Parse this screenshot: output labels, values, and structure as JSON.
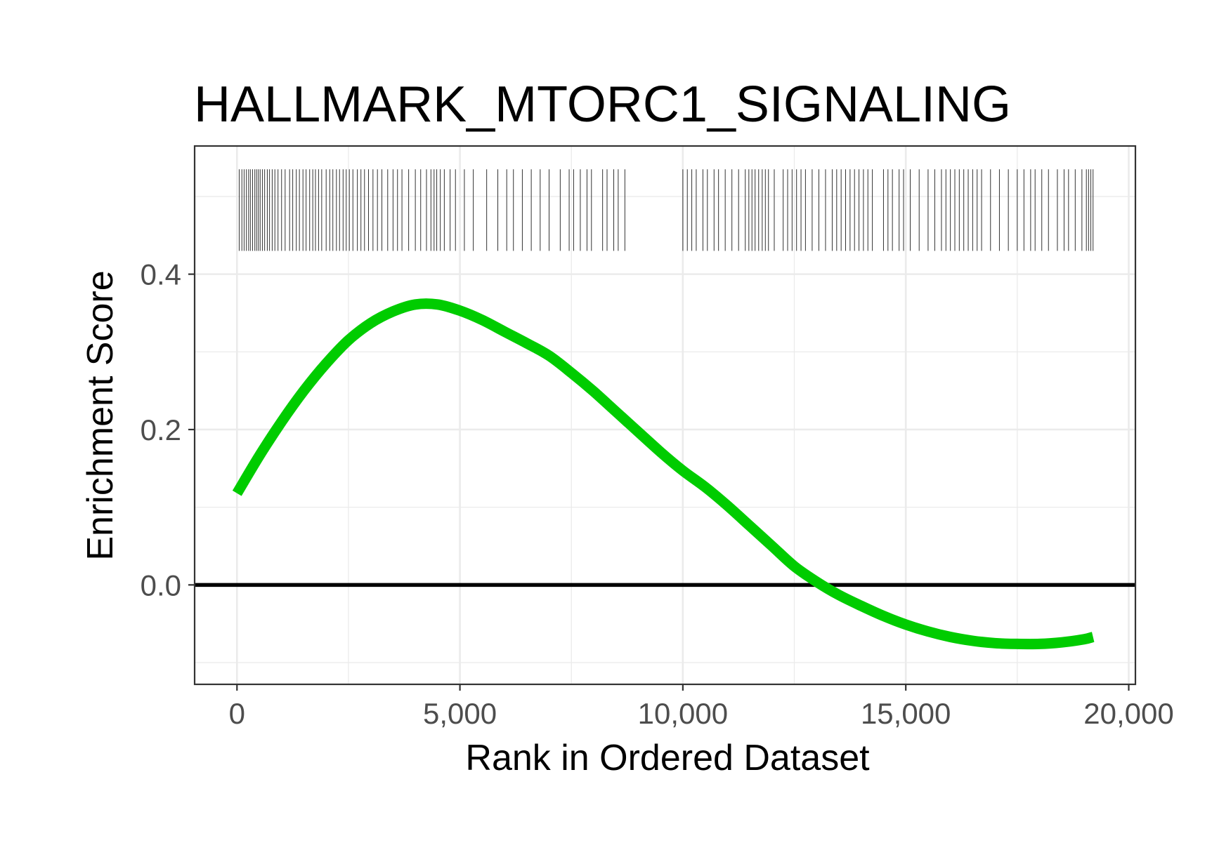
{
  "chart_data": {
    "type": "line",
    "title": "HALLMARK_MTORC1_SIGNALING",
    "xlabel": "Rank in Ordered Dataset",
    "ylabel": "Enrichment Score",
    "xlim": [
      -950,
      20150
    ],
    "ylim": [
      -0.128,
      0.565
    ],
    "x_ticks": [
      0,
      5000,
      10000,
      15000,
      20000
    ],
    "x_tick_labels": [
      "0",
      "5,000",
      "10,000",
      "15,000",
      "20,000"
    ],
    "y_ticks": [
      0.0,
      0.2,
      0.4
    ],
    "y_tick_labels": [
      "0.0",
      "0.2",
      "0.4"
    ],
    "x_minor_ticks": [
      2500,
      7500,
      12500,
      17500
    ],
    "y_minor_ticks": [
      -0.1,
      0.1,
      0.3,
      0.5
    ],
    "grid": true,
    "zero_line": 0,
    "series": [
      {
        "color": "#00cc00",
        "x": [
          0,
          500,
          1000,
          1500,
          2000,
          2500,
          3000,
          3500,
          4000,
          4500,
          5000,
          5500,
          6000,
          6500,
          7000,
          7500,
          8000,
          8500,
          9000,
          9500,
          10000,
          10500,
          11000,
          11500,
          12000,
          12500,
          13000,
          13500,
          14000,
          14500,
          15000,
          15500,
          16000,
          16500,
          17000,
          17500,
          18000,
          18500,
          19000,
          19200
        ],
        "y": [
          0.118,
          0.166,
          0.21,
          0.25,
          0.285,
          0.315,
          0.337,
          0.352,
          0.361,
          0.361,
          0.353,
          0.341,
          0.326,
          0.311,
          0.295,
          0.273,
          0.249,
          0.223,
          0.197,
          0.171,
          0.147,
          0.126,
          0.102,
          0.076,
          0.05,
          0.024,
          0.004,
          -0.013,
          -0.027,
          -0.04,
          -0.051,
          -0.06,
          -0.067,
          -0.072,
          -0.075,
          -0.076,
          -0.076,
          -0.074,
          -0.07,
          -0.067
        ]
      }
    ],
    "gene_hits": {
      "band_ylim": [
        0.43,
        0.535
      ],
      "color": "#333333",
      "positions": [
        50,
        110,
        160,
        210,
        260,
        300,
        350,
        400,
        440,
        480,
        520,
        570,
        620,
        680,
        730,
        790,
        850,
        920,
        1000,
        1080,
        1180,
        1250,
        1330,
        1400,
        1480,
        1550,
        1630,
        1700,
        1760,
        1830,
        1900,
        2000,
        2080,
        2150,
        2230,
        2300,
        2380,
        2450,
        2520,
        2600,
        2700,
        2780,
        2860,
        2950,
        3050,
        3150,
        3250,
        3380,
        3500,
        3600,
        3700,
        3850,
        4000,
        4120,
        4250,
        4350,
        4420,
        4480,
        4560,
        4650,
        4780,
        4900,
        5100,
        5300,
        5600,
        5850,
        6050,
        6200,
        6400,
        6600,
        6800,
        7000,
        7250,
        7450,
        7550,
        7700,
        7850,
        7950,
        8200,
        8300,
        8450,
        8550,
        8700,
        10000,
        10100,
        10200,
        10300,
        10450,
        10550,
        10700,
        10800,
        10950,
        11100,
        11250,
        11400,
        11480,
        11550,
        11620,
        11700,
        11780,
        11850,
        11920,
        12050,
        12250,
        12350,
        12450,
        12550,
        12650,
        12750,
        12900,
        13050,
        13200,
        13350,
        13450,
        13550,
        13650,
        13750,
        13850,
        13950,
        14050,
        14150,
        14250,
        14500,
        14600,
        14700,
        14850,
        14950,
        15100,
        15300,
        15500,
        15650,
        15800,
        15900,
        16000,
        16100,
        16200,
        16300,
        16400,
        16500,
        16600,
        16700,
        16900,
        17100,
        17300,
        17500,
        17650,
        17800,
        17900,
        18050,
        18200,
        18400,
        18550,
        18650,
        18800,
        18950,
        19050,
        19100,
        19150,
        19200
      ]
    }
  }
}
